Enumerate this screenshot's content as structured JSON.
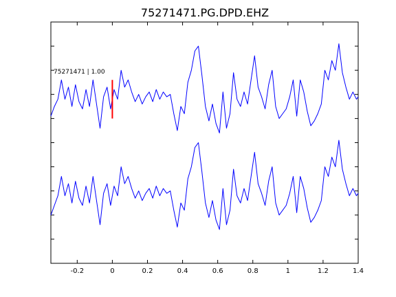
{
  "chart_data": {
    "type": "line",
    "title": "75271471.PG.DPD.EHZ",
    "xlabel": "",
    "ylabel": "",
    "xlim": [
      -0.35,
      1.4
    ],
    "xticks": [
      -0.2,
      0,
      0.2,
      0.4,
      0.6,
      0.8,
      1,
      1.2,
      1.4
    ],
    "xtick_labels": [
      "-0.2",
      "0",
      "0.2",
      "0.4",
      "0.6",
      "0.8",
      "1",
      "1.2",
      "1.4"
    ],
    "ylim": [
      0,
      10
    ],
    "yticks": [
      1,
      2,
      3,
      4,
      5,
      6,
      7,
      8,
      9
    ],
    "ytick_labels": [
      "",
      "",
      "",
      "",
      "",
      "",
      "",
      "",
      ""
    ],
    "grid": false,
    "line_color": "#0000ff",
    "marker_color": "#ff0000",
    "pick_marker": {
      "x": 0,
      "y_range": [
        6.0,
        7.6
      ]
    },
    "trace_label": "75271471 | 1.00",
    "trace_label_y": 7.95,
    "series": [
      {
        "x": [
          -0.35,
          -0.33,
          -0.31,
          -0.29,
          -0.27,
          -0.25,
          -0.23,
          -0.21,
          -0.19,
          -0.17,
          -0.15,
          -0.13,
          -0.11,
          -0.09,
          -0.07,
          -0.05,
          -0.03,
          -0.01,
          0.01,
          0.03,
          0.05,
          0.07,
          0.09,
          0.11,
          0.13,
          0.15,
          0.17,
          0.19,
          0.21,
          0.23,
          0.25,
          0.27,
          0.29,
          0.31,
          0.33,
          0.35,
          0.37,
          0.39,
          0.41,
          0.43,
          0.45,
          0.47,
          0.49,
          0.51,
          0.53,
          0.55,
          0.57,
          0.59,
          0.61,
          0.63,
          0.65,
          0.67,
          0.69,
          0.71,
          0.73,
          0.75,
          0.77,
          0.79,
          0.81,
          0.83,
          0.85,
          0.87,
          0.89,
          0.91,
          0.93,
          0.95,
          0.97,
          0.99,
          1.01,
          1.03,
          1.05,
          1.07,
          1.09,
          1.11,
          1.13,
          1.15,
          1.17,
          1.19,
          1.21,
          1.23,
          1.25,
          1.27,
          1.29,
          1.31,
          1.33,
          1.35,
          1.37,
          1.39,
          1.4
        ],
        "y": [
          6.1,
          6.5,
          6.8,
          7.6,
          6.8,
          7.3,
          6.5,
          7.4,
          6.7,
          6.4,
          7.2,
          6.5,
          7.6,
          6.6,
          5.6,
          6.9,
          7.3,
          6.4,
          7.2,
          6.8,
          8.0,
          7.3,
          7.6,
          7.1,
          6.7,
          7.0,
          6.6,
          6.9,
          7.1,
          6.7,
          7.2,
          6.8,
          7.1,
          6.9,
          7.0,
          6.2,
          5.5,
          6.5,
          6.2,
          7.5,
          8.0,
          8.8,
          9.0,
          7.8,
          6.5,
          5.9,
          6.6,
          5.8,
          5.4,
          7.1,
          5.6,
          6.2,
          7.9,
          6.8,
          6.5,
          7.1,
          6.6,
          7.6,
          8.6,
          7.3,
          6.9,
          6.4,
          7.4,
          8.0,
          6.5,
          6.0,
          6.2,
          6.4,
          6.9,
          7.6,
          6.1,
          7.6,
          7.1,
          6.3,
          5.7,
          5.9,
          6.2,
          6.6,
          8.0,
          7.6,
          8.4,
          8.0,
          9.1,
          7.9,
          7.3,
          6.8,
          7.1,
          6.8,
          6.9
        ]
      },
      {
        "x": [
          -0.35,
          -0.33,
          -0.31,
          -0.29,
          -0.27,
          -0.25,
          -0.23,
          -0.21,
          -0.19,
          -0.17,
          -0.15,
          -0.13,
          -0.11,
          -0.09,
          -0.07,
          -0.05,
          -0.03,
          -0.01,
          0.01,
          0.03,
          0.05,
          0.07,
          0.09,
          0.11,
          0.13,
          0.15,
          0.17,
          0.19,
          0.21,
          0.23,
          0.25,
          0.27,
          0.29,
          0.31,
          0.33,
          0.35,
          0.37,
          0.39,
          0.41,
          0.43,
          0.45,
          0.47,
          0.49,
          0.51,
          0.53,
          0.55,
          0.57,
          0.59,
          0.61,
          0.63,
          0.65,
          0.67,
          0.69,
          0.71,
          0.73,
          0.75,
          0.77,
          0.79,
          0.81,
          0.83,
          0.85,
          0.87,
          0.89,
          0.91,
          0.93,
          0.95,
          0.97,
          0.99,
          1.01,
          1.03,
          1.05,
          1.07,
          1.09,
          1.11,
          1.13,
          1.15,
          1.17,
          1.19,
          1.21,
          1.23,
          1.25,
          1.27,
          1.29,
          1.31,
          1.33,
          1.35,
          1.37,
          1.39,
          1.4
        ],
        "y": [
          2.0,
          2.4,
          2.8,
          3.6,
          2.8,
          3.3,
          2.5,
          3.4,
          2.7,
          2.4,
          3.2,
          2.5,
          3.6,
          2.6,
          1.6,
          2.9,
          3.3,
          2.4,
          3.2,
          2.8,
          4.0,
          3.3,
          3.6,
          3.1,
          2.7,
          3.0,
          2.6,
          2.9,
          3.1,
          2.7,
          3.2,
          2.8,
          3.1,
          2.9,
          3.0,
          2.2,
          1.5,
          2.5,
          2.2,
          3.5,
          4.0,
          4.8,
          5.0,
          3.8,
          2.5,
          1.9,
          2.6,
          1.8,
          1.4,
          3.1,
          1.6,
          2.2,
          3.9,
          2.8,
          2.5,
          3.1,
          2.6,
          3.6,
          4.6,
          3.3,
          2.9,
          2.4,
          3.4,
          4.0,
          2.5,
          2.0,
          2.2,
          2.4,
          2.9,
          3.6,
          2.1,
          3.6,
          3.1,
          2.3,
          1.7,
          1.9,
          2.2,
          2.6,
          4.0,
          3.6,
          4.4,
          4.0,
          5.1,
          3.9,
          3.3,
          2.8,
          3.1,
          2.8,
          2.9
        ]
      }
    ]
  }
}
